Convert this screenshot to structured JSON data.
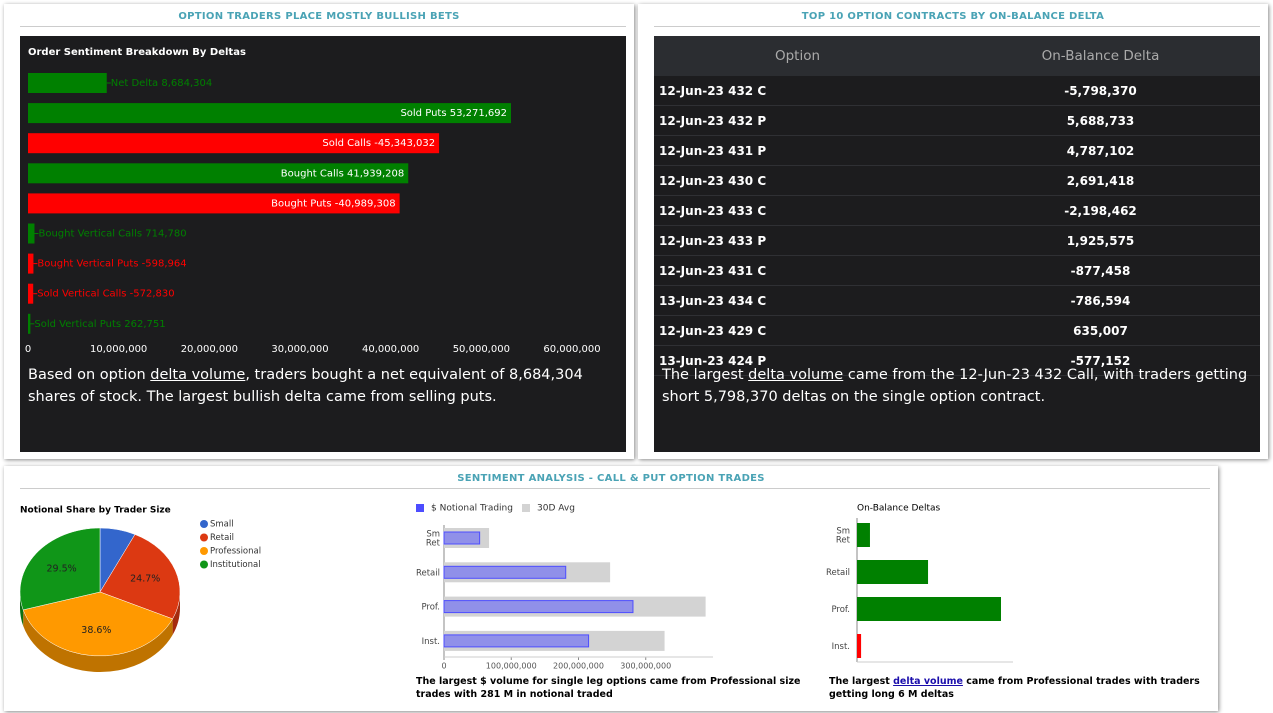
{
  "panels": [
    {
      "title": "OPTION TRADERS PLACE MOSTLY BULLISH BETS"
    },
    {
      "title": "TOP 10 OPTION CONTRACTS BY ON-BALANCE DELTA"
    },
    {
      "title": "SENTIMENT ANALYSIS - CALL & PUT OPTION TRADES"
    }
  ],
  "chart_data": [
    {
      "type": "bar",
      "orientation": "horizontal",
      "title": "Order Sentiment Breakdown By Deltas",
      "categories": [
        "Net Delta",
        "Sold Puts",
        "Sold Calls",
        "Bought Calls",
        "Bought Puts",
        "Bought Vertical Calls",
        "Bought Vertical Puts",
        "Sold Vertical Calls",
        "Sold Vertical Puts"
      ],
      "values": [
        8684304,
        53271692,
        -45343032,
        41939208,
        -40989308,
        714780,
        -598964,
        -572830,
        262751
      ],
      "value_labels": [
        "8,684,304",
        "53,271,692",
        "-45,343,032",
        "41,939,208",
        "-40,989,308",
        "714,780",
        "-598,964",
        "-572,830",
        "262,751"
      ],
      "colors": [
        "#008000",
        "#008000",
        "#ff0000",
        "#008000",
        "#ff0000",
        "#008000",
        "#ff0000",
        "#ff0000",
        "#008000"
      ],
      "xlim": [
        0,
        60000000
      ],
      "xticks": [
        0,
        {
          "value": 10000000,
          "label": "10,000,000"
        },
        {
          "value": 20000000,
          "label": "20,000,000"
        },
        {
          "value": 30000000,
          "label": "30,000,000"
        },
        {
          "value": 40000000,
          "label": "40,000,000"
        },
        {
          "value": 50000000,
          "label": "50,000,000"
        },
        {
          "value": 60000000,
          "label": "60,000,000"
        }
      ]
    },
    {
      "type": "pie",
      "title": "Notional Share by Trader Size",
      "labels": [
        "Small",
        "Retail",
        "Professional",
        "Institutional"
      ],
      "values": [
        7.2,
        24.7,
        38.6,
        29.5
      ],
      "value_labels": [
        null,
        "24.7%",
        "38.6%",
        "29.5%"
      ],
      "colors": [
        "#3366cc",
        "#dc3912",
        "#ff9900",
        "#109618"
      ]
    },
    {
      "type": "bar",
      "orientation": "horizontal",
      "categories": [
        "Sm Ret",
        "Retail",
        "Prof.",
        "Inst."
      ],
      "series": [
        {
          "name": "$ Notional Trading",
          "color": "#4d4dff",
          "values": [
            53000000,
            181000000,
            281000000,
            215000000
          ]
        },
        {
          "name": "30D Avg",
          "color": "#d3d3d3",
          "values": [
            67000000,
            247000000,
            389000000,
            328000000
          ]
        }
      ],
      "xlim": [
        0,
        400000000
      ],
      "xticks": [
        0,
        {
          "value": 100000000,
          "label": "100,000,000"
        },
        {
          "value": 200000000,
          "label": "200,000,000"
        },
        {
          "value": 300000000,
          "label": "300,000,000"
        }
      ]
    },
    {
      "type": "bar",
      "orientation": "horizontal",
      "title": "On-Balance Deltas",
      "categories": [
        "Sm Ret",
        "Retail",
        "Prof.",
        "Inst."
      ],
      "values": [
        540000,
        2960000,
        6000000,
        -170000
      ],
      "colors": [
        "#008000",
        "#008000",
        "#008000",
        "#ff0000"
      ],
      "xlim": [
        0,
        6500000
      ]
    }
  ],
  "table": {
    "columns": [
      "Option",
      "On-Balance Delta"
    ],
    "rows": [
      [
        "12-Jun-23 432 C",
        "-5,798,370"
      ],
      [
        "12-Jun-23 432 P",
        "5,688,733"
      ],
      [
        "12-Jun-23 431 P",
        "4,787,102"
      ],
      [
        "12-Jun-23 430 C",
        "2,691,418"
      ],
      [
        "12-Jun-23 433 C",
        "-2,198,462"
      ],
      [
        "12-Jun-23 433 P",
        "1,925,575"
      ],
      [
        "12-Jun-23 431 C",
        "-877,458"
      ],
      [
        "13-Jun-23 434 C",
        "-786,594"
      ],
      [
        "12-Jun-23 429 C",
        "635,007"
      ],
      [
        "13-Jun-23 424 P",
        "-577,152"
      ]
    ]
  },
  "captions": [
    [
      "Based on option ",
      "delta volume",
      ", traders bought a net equivalent of 8,684,304 shares of stock. The largest bullish delta came from selling puts."
    ],
    [
      "The largest ",
      "delta volume",
      " came from the 12-Jun-23 432 Call, with traders getting short 5,798,370 deltas on the single option contract."
    ],
    [
      "The largest $ volume for single leg options came from Professional size trades with 281 M in notional traded"
    ],
    [
      "The largest ",
      "delta volume",
      " came from Professional trades with traders getting long 6 M deltas"
    ]
  ]
}
